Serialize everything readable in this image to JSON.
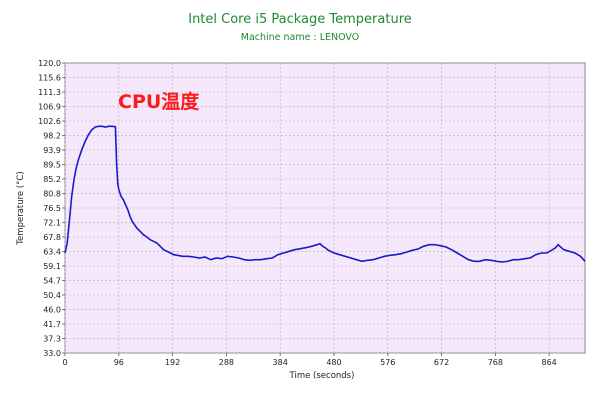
{
  "chart_data": {
    "type": "line",
    "title": "Intel Core i5 Package Temperature",
    "subtitle": "Machine name : LENOVO",
    "annotation": "CPU温度",
    "xlabel": "Time (seconds)",
    "ylabel": "Temperature (°C)",
    "xlim": [
      0,
      928
    ],
    "ylim": [
      33.0,
      120.0
    ],
    "x_ticks": [
      "0",
      "96",
      "192",
      "288",
      "384",
      "480",
      "576",
      "672",
      "768",
      "864"
    ],
    "y_ticks": [
      "33.0",
      "37.3",
      "41.7",
      "46.0",
      "50.4",
      "54.7",
      "59.1",
      "63.4",
      "67.8",
      "72.1",
      "76.5",
      "80.8",
      "85.2",
      "89.5",
      "93.9",
      "98.2",
      "102.6",
      "106.9",
      "111.3",
      "115.6",
      "120.0"
    ],
    "grid": true,
    "colors": {
      "line": "#1a1acc",
      "plot_background": "#f6e8fb",
      "title": "#1f8a2f",
      "annotation": "#ff1a1a"
    },
    "series": [
      {
        "x": [
          0,
          4,
          8,
          12,
          16,
          20,
          24,
          30,
          36,
          42,
          48,
          54,
          60,
          66,
          72,
          78,
          84,
          90,
          92,
          94,
          96,
          100,
          104,
          108,
          112,
          116,
          120,
          124,
          128,
          134,
          140,
          146,
          152,
          158,
          164,
          170,
          176,
          182,
          188,
          194,
          200,
          210,
          220,
          230,
          240,
          250,
          260,
          270,
          280,
          290,
          300,
          310,
          320,
          330,
          340,
          350,
          360,
          370,
          380,
          390,
          400,
          410,
          420,
          430,
          440,
          450,
          455,
          460,
          465,
          470,
          480,
          490,
          500,
          510,
          520,
          530,
          540,
          550,
          560,
          570,
          580,
          590,
          600,
          610,
          620,
          630,
          640,
          650,
          660,
          670,
          680,
          690,
          700,
          710,
          720,
          730,
          740,
          750,
          760,
          770,
          780,
          790,
          800,
          810,
          820,
          830,
          840,
          850,
          860,
          870,
          875,
          880,
          890,
          900,
          910,
          920,
          928
        ],
        "y": [
          63.0,
          66.0,
          73.0,
          80.0,
          85.0,
          88.5,
          91.0,
          94.0,
          96.5,
          98.5,
          100.0,
          100.8,
          101.0,
          101.0,
          100.8,
          101.0,
          101.0,
          100.9,
          90.0,
          84.0,
          82.0,
          80.0,
          79.0,
          77.5,
          76.0,
          74.0,
          72.5,
          71.5,
          70.5,
          69.5,
          68.5,
          67.8,
          67.0,
          66.5,
          66.0,
          65.0,
          64.0,
          63.5,
          63.0,
          62.5,
          62.3,
          62.0,
          62.0,
          61.8,
          61.5,
          61.8,
          61.0,
          61.5,
          61.3,
          62.0,
          61.8,
          61.5,
          61.0,
          60.8,
          61.0,
          61.0,
          61.3,
          61.5,
          62.5,
          63.0,
          63.5,
          64.0,
          64.3,
          64.6,
          65.0,
          65.5,
          65.8,
          65.0,
          64.5,
          63.8,
          63.0,
          62.5,
          62.0,
          61.5,
          61.0,
          60.5,
          60.8,
          61.0,
          61.5,
          62.0,
          62.3,
          62.5,
          62.8,
          63.3,
          63.8,
          64.2,
          65.0,
          65.5,
          65.5,
          65.2,
          64.8,
          64.0,
          63.0,
          62.0,
          61.0,
          60.5,
          60.5,
          61.0,
          60.8,
          60.5,
          60.3,
          60.5,
          61.0,
          61.0,
          61.3,
          61.5,
          62.5,
          63.0,
          63.0,
          64.0,
          64.5,
          65.5,
          64.0,
          63.5,
          63.0,
          62.0,
          60.5
        ]
      }
    ]
  }
}
